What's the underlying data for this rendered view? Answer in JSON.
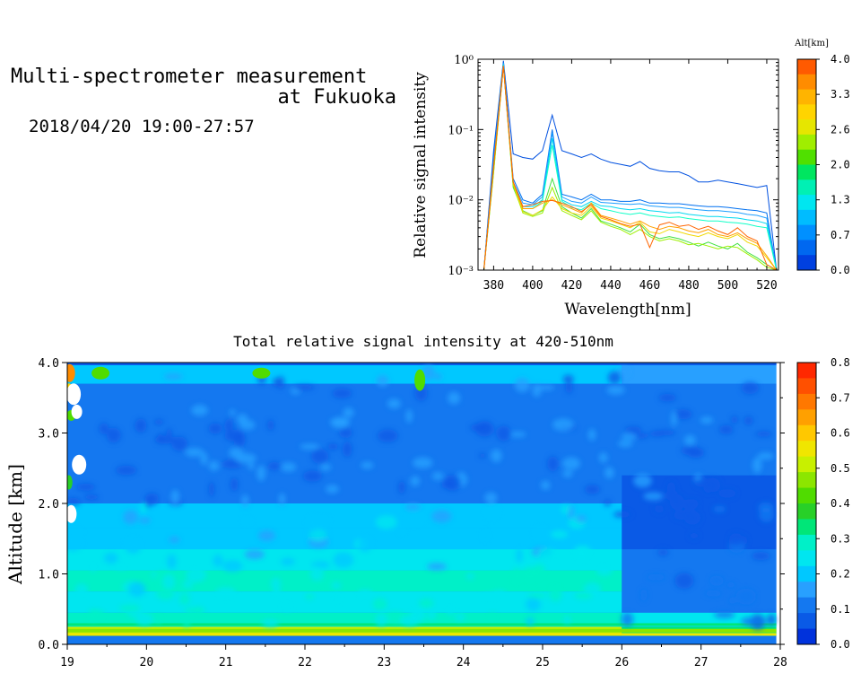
{
  "header": {
    "title_line1": "Multi-spectrometer measurement",
    "title_line2": "at Fukuoka",
    "date_range": "2018/04/20 19:00-27:57"
  },
  "chart_data": [
    {
      "type": "line",
      "xlabel": "Wavelength[nm]",
      "ylabel": "Relative signal intensity",
      "x_ticks": [
        380,
        400,
        420,
        440,
        460,
        480,
        500,
        520
      ],
      "xlim": [
        372,
        526
      ],
      "y_scale": "log",
      "ylim": [
        0.001,
        1
      ],
      "y_tick_labels": [
        "10⁻³",
        "10⁻²",
        "10⁻¹",
        "10⁰"
      ],
      "x": [
        375,
        380,
        385,
        390,
        395,
        400,
        405,
        410,
        415,
        420,
        425,
        430,
        435,
        440,
        445,
        450,
        455,
        460,
        465,
        470,
        475,
        480,
        485,
        490,
        495,
        500,
        505,
        510,
        515,
        520,
        525
      ],
      "series": [
        {
          "color": "#0050e0",
          "values": [
            0.001,
            0.05,
            0.95,
            0.045,
            0.04,
            0.038,
            0.05,
            0.16,
            0.05,
            0.045,
            0.04,
            0.045,
            0.038,
            0.034,
            0.032,
            0.03,
            0.035,
            0.028,
            0.026,
            0.025,
            0.025,
            0.022,
            0.018,
            0.018,
            0.019,
            0.018,
            0.017,
            0.016,
            0.015,
            0.016,
            0.001
          ]
        },
        {
          "color": "#0070f0",
          "values": [
            0.001,
            0.04,
            0.9,
            0.02,
            0.01,
            0.009,
            0.012,
            0.1,
            0.012,
            0.011,
            0.01,
            0.012,
            0.01,
            0.01,
            0.0095,
            0.0095,
            0.01,
            0.009,
            0.009,
            0.0088,
            0.0088,
            0.0085,
            0.0082,
            0.008,
            0.008,
            0.0078,
            0.0075,
            0.0072,
            0.007,
            0.0065,
            0.001
          ]
        },
        {
          "color": "#1f9fff",
          "values": [
            0.001,
            0.035,
            0.88,
            0.018,
            0.009,
            0.0085,
            0.011,
            0.09,
            0.011,
            0.0095,
            0.009,
            0.011,
            0.0092,
            0.009,
            0.0088,
            0.0086,
            0.0088,
            0.0082,
            0.008,
            0.0078,
            0.0078,
            0.0075,
            0.0072,
            0.007,
            0.007,
            0.0068,
            0.0066,
            0.0062,
            0.006,
            0.0055,
            0.001
          ]
        },
        {
          "color": "#00d8f0",
          "values": [
            0.001,
            0.03,
            0.85,
            0.017,
            0.008,
            0.008,
            0.01,
            0.075,
            0.01,
            0.0085,
            0.008,
            0.0095,
            0.0082,
            0.008,
            0.0075,
            0.0072,
            0.0075,
            0.007,
            0.0068,
            0.0065,
            0.0066,
            0.0062,
            0.006,
            0.0058,
            0.0058,
            0.0056,
            0.0055,
            0.0052,
            0.005,
            0.0046,
            0.001
          ]
        },
        {
          "color": "#10ffc8",
          "values": [
            0.001,
            0.03,
            0.82,
            0.016,
            0.0075,
            0.0075,
            0.0095,
            0.06,
            0.0095,
            0.0078,
            0.0072,
            0.009,
            0.0075,
            0.007,
            0.0065,
            0.0062,
            0.0065,
            0.006,
            0.0058,
            0.0056,
            0.0057,
            0.0054,
            0.0052,
            0.005,
            0.005,
            0.0048,
            0.0047,
            0.0045,
            0.0042,
            0.004,
            0.001
          ]
        },
        {
          "color": "#40e040",
          "values": [
            0.001,
            0.025,
            0.8,
            0.015,
            0.007,
            0.006,
            0.007,
            0.02,
            0.008,
            0.0065,
            0.0055,
            0.0075,
            0.005,
            0.0045,
            0.004,
            0.0035,
            0.0045,
            0.0032,
            0.0028,
            0.003,
            0.0028,
            0.0025,
            0.0022,
            0.0025,
            0.0022,
            0.002,
            0.0024,
            0.0018,
            0.0015,
            0.0012,
            0.001
          ]
        },
        {
          "color": "#9cf000",
          "values": [
            0.001,
            0.025,
            0.8,
            0.016,
            0.0065,
            0.0058,
            0.0065,
            0.015,
            0.007,
            0.006,
            0.0052,
            0.007,
            0.0048,
            0.0042,
            0.0038,
            0.0032,
            0.0038,
            0.003,
            0.0026,
            0.0028,
            0.0026,
            0.0023,
            0.0024,
            0.0022,
            0.002,
            0.0022,
            0.0021,
            0.0017,
            0.0014,
            0.0011,
            0.001
          ]
        },
        {
          "color": "#f0d800",
          "values": [
            0.001,
            0.03,
            0.8,
            0.017,
            0.0068,
            0.006,
            0.0072,
            0.011,
            0.0075,
            0.0065,
            0.006,
            0.008,
            0.0055,
            0.005,
            0.0045,
            0.004,
            0.0048,
            0.0035,
            0.0033,
            0.0038,
            0.0035,
            0.0032,
            0.003,
            0.0034,
            0.003,
            0.0028,
            0.0032,
            0.0025,
            0.0022,
            0.0015,
            0.001
          ]
        },
        {
          "color": "#ffa000",
          "values": [
            0.001,
            0.03,
            0.8,
            0.018,
            0.0075,
            0.0075,
            0.009,
            0.01,
            0.0085,
            0.0075,
            0.0065,
            0.009,
            0.006,
            0.0055,
            0.005,
            0.0045,
            0.005,
            0.0042,
            0.0038,
            0.0042,
            0.004,
            0.0036,
            0.0034,
            0.0038,
            0.0032,
            0.003,
            0.0034,
            0.0028,
            0.0024,
            0.0016,
            0.001
          ]
        },
        {
          "color": "#ff6400",
          "values": [
            0.001,
            0.03,
            0.8,
            0.018,
            0.008,
            0.0085,
            0.0095,
            0.0098,
            0.009,
            0.008,
            0.0068,
            0.0085,
            0.0058,
            0.0052,
            0.0046,
            0.0042,
            0.0045,
            0.0021,
            0.0044,
            0.0048,
            0.0042,
            0.0044,
            0.0038,
            0.0042,
            0.0036,
            0.0032,
            0.004,
            0.003,
            0.0026,
            0.0012,
            0.001
          ]
        }
      ]
    },
    {
      "type": "heatmap",
      "title": "Total relative signal intensity at 420-510nm",
      "ylabel": "Altitude [km]",
      "xlim": [
        19,
        28
      ],
      "ylim": [
        0,
        4
      ],
      "x_ticks": [
        19,
        20,
        21,
        22,
        23,
        24,
        25,
        26,
        27,
        28
      ],
      "y_tick_labels": [
        "0.0",
        "1.0",
        "2.0",
        "3.0",
        "4.0"
      ],
      "y_ticks": [
        0,
        1,
        2,
        3,
        4
      ],
      "data_end_time": 27.95,
      "altitude_profile_km": [
        0.1,
        0.2,
        0.3,
        0.6,
        0.9,
        1.2,
        1.5,
        1.8,
        2.2,
        2.6,
        3.0,
        3.5,
        3.9
      ],
      "intensity_before_26h": [
        0.4,
        0.5,
        0.3,
        0.23,
        0.3,
        0.25,
        0.2,
        0.18,
        0.1,
        0.12,
        0.1,
        0.12,
        0.2
      ],
      "intensity_after_26h": [
        0.3,
        0.35,
        0.25,
        0.1,
        0.1,
        0.1,
        0.08,
        0.08,
        0.08,
        0.1,
        0.1,
        0.11,
        0.15
      ]
    }
  ],
  "colorbars": [
    {
      "title": "Alt[km]",
      "tick_labels": [
        "4.0",
        "3.3",
        "2.6",
        "2.0",
        "1.3",
        "0.7",
        "0.0"
      ],
      "colors_top_to_bottom": [
        "#ff5a00",
        "#ff8c00",
        "#ffb400",
        "#ffd400",
        "#e6e600",
        "#a0ee00",
        "#50e000",
        "#00e660",
        "#00f0b4",
        "#00e6f0",
        "#00bcff",
        "#0090ff",
        "#0068f0",
        "#0040e0"
      ]
    },
    {
      "tick_labels": [
        "0.8",
        "0.7",
        "0.6",
        "0.5",
        "0.4",
        "0.3",
        "0.2",
        "0.1",
        "0.0"
      ],
      "colors_top_to_bottom": [
        "#ff2800",
        "#ff5000",
        "#ff7800",
        "#ffa000",
        "#ffc800",
        "#f0e600",
        "#c8f000",
        "#8ce600",
        "#50dc00",
        "#28d028",
        "#00e678",
        "#00f0c8",
        "#00e6f0",
        "#00c8ff",
        "#28a0ff",
        "#1478f0",
        "#0a5ae6",
        "#0032dc"
      ]
    }
  ]
}
